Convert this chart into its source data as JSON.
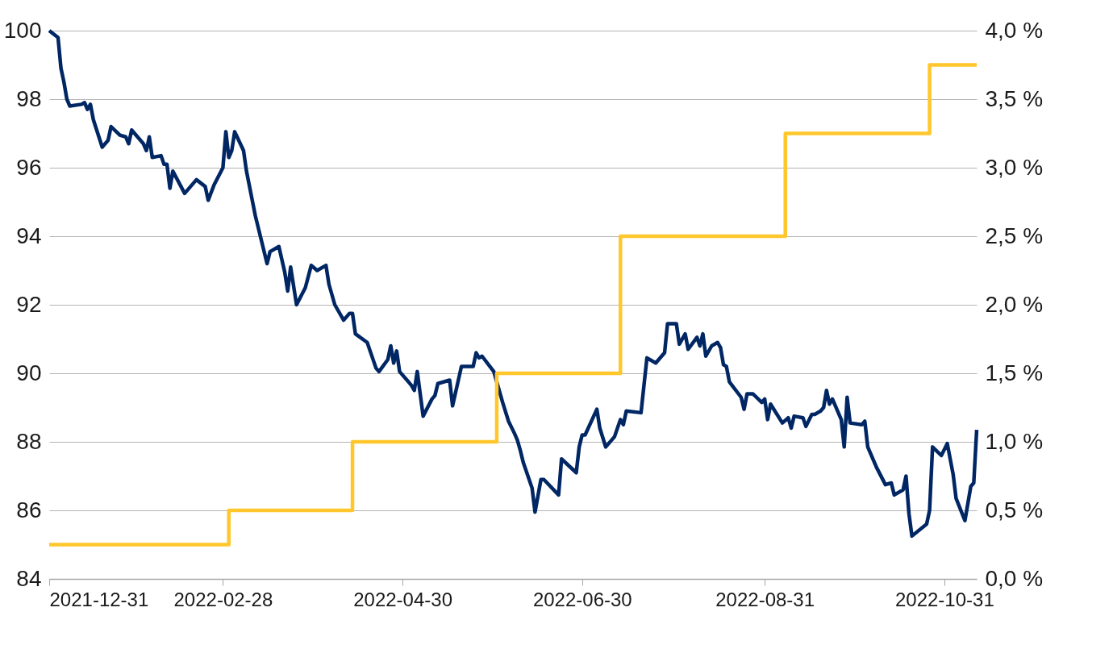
{
  "chart_data": {
    "type": "line",
    "xlim": [
      "2021-12-31",
      "2022-11-11"
    ],
    "xticks": [
      "2021-12-31",
      "2022-02-28",
      "2022-04-30",
      "2022-06-30",
      "2022-08-31",
      "2022-10-31"
    ],
    "ylim": [
      84,
      100
    ],
    "yticks": [
      84,
      86,
      88,
      90,
      92,
      94,
      96,
      98,
      100
    ],
    "y2lim": [
      0,
      4
    ],
    "y2ticks": [
      {
        "value": 0,
        "label": "0,0 %"
      },
      {
        "value": 0.5,
        "label": "0,5 %"
      },
      {
        "value": 1,
        "label": "1,0 %"
      },
      {
        "value": 1.5,
        "label": "1,5 %"
      },
      {
        "value": 2,
        "label": "2,0 %"
      },
      {
        "value": 2.5,
        "label": "2,5 %"
      },
      {
        "value": 3,
        "label": "3,0 %"
      },
      {
        "value": 3.5,
        "label": "3,5 %"
      },
      {
        "value": 4,
        "label": "4,0 %"
      }
    ],
    "grid": "y",
    "series": [
      {
        "color": "#002664",
        "x": [
          "2021-12-31",
          "2022-01-03",
          "2022-01-04",
          "2022-01-05",
          "2022-01-06",
          "2022-01-07",
          "2022-01-11",
          "2022-01-12",
          "2022-01-13",
          "2022-01-14",
          "2022-01-15",
          "2022-01-18",
          "2022-01-20",
          "2022-01-21",
          "2022-01-24",
          "2022-01-26",
          "2022-01-27",
          "2022-01-28",
          "2022-02-01",
          "2022-02-02",
          "2022-02-03",
          "2022-02-04",
          "2022-02-07",
          "2022-02-08",
          "2022-02-09",
          "2022-02-10",
          "2022-02-11",
          "2022-02-15",
          "2022-02-19",
          "2022-02-22",
          "2022-02-23",
          "2022-02-25",
          "2022-02-28",
          "2022-03-01",
          "2022-03-02",
          "2022-03-03",
          "2022-03-04",
          "2022-03-07",
          "2022-03-08",
          "2022-03-11",
          "2022-03-15",
          "2022-03-16",
          "2022-03-19",
          "2022-03-21",
          "2022-03-22",
          "2022-03-23",
          "2022-03-25",
          "2022-03-28",
          "2022-03-30",
          "2022-04-01",
          "2022-04-04",
          "2022-04-05",
          "2022-04-07",
          "2022-04-10",
          "2022-04-12",
          "2022-04-13",
          "2022-04-14",
          "2022-04-18",
          "2022-04-19",
          "2022-04-21",
          "2022-04-22",
          "2022-04-25",
          "2022-04-26",
          "2022-04-27",
          "2022-04-28",
          "2022-04-29",
          "2022-05-03",
          "2022-05-04",
          "2022-05-05",
          "2022-05-07",
          "2022-05-10",
          "2022-05-11",
          "2022-05-12",
          "2022-05-16",
          "2022-05-17",
          "2022-05-20",
          "2022-05-24",
          "2022-05-25",
          "2022-05-26",
          "2022-05-27",
          "2022-05-31",
          "2022-06-03",
          "2022-06-05",
          "2022-06-07",
          "2022-06-08",
          "2022-06-09",
          "2022-06-10",
          "2022-06-13",
          "2022-06-14",
          "2022-06-16",
          "2022-06-17",
          "2022-06-22",
          "2022-06-23",
          "2022-06-28",
          "2022-06-29",
          "2022-06-30",
          "2022-07-01",
          "2022-07-05",
          "2022-07-06",
          "2022-07-08",
          "2022-07-11",
          "2022-07-13",
          "2022-07-14",
          "2022-07-15",
          "2022-07-20",
          "2022-07-22",
          "2022-07-25",
          "2022-07-28",
          "2022-07-29",
          "2022-08-01",
          "2022-08-02",
          "2022-08-04",
          "2022-08-05",
          "2022-08-08",
          "2022-08-09",
          "2022-08-10",
          "2022-08-11",
          "2022-08-13",
          "2022-08-15",
          "2022-08-16",
          "2022-08-17",
          "2022-08-18",
          "2022-08-19",
          "2022-08-23",
          "2022-08-24",
          "2022-08-25",
          "2022-08-27",
          "2022-08-30",
          "2022-08-31",
          "2022-09-01",
          "2022-09-02",
          "2022-09-06",
          "2022-09-08",
          "2022-09-09",
          "2022-09-10",
          "2022-09-13",
          "2022-09-14",
          "2022-09-16",
          "2022-09-17",
          "2022-09-19",
          "2022-09-20",
          "2022-09-21",
          "2022-09-22",
          "2022-09-23",
          "2022-09-26",
          "2022-09-27",
          "2022-09-28",
          "2022-09-29",
          "2022-10-03",
          "2022-10-04",
          "2022-10-05",
          "2022-10-08",
          "2022-10-11",
          "2022-10-13",
          "2022-10-14",
          "2022-10-17",
          "2022-10-18",
          "2022-10-19",
          "2022-10-20",
          "2022-10-25",
          "2022-10-26",
          "2022-10-27",
          "2022-10-30",
          "2022-11-01",
          "2022-11-03",
          "2022-11-04",
          "2022-11-07",
          "2022-11-09",
          "2022-11-10",
          "2022-11-11"
        ],
        "values": [
          100.0,
          99.8,
          98.9,
          98.5,
          98.0,
          97.8,
          97.85,
          97.9,
          97.7,
          97.85,
          97.4,
          96.6,
          96.8,
          97.2,
          96.95,
          96.9,
          96.7,
          97.1,
          96.7,
          96.5,
          96.9,
          96.3,
          96.35,
          96.1,
          96.1,
          95.4,
          95.9,
          95.25,
          95.65,
          95.45,
          95.05,
          95.5,
          96.0,
          97.05,
          96.3,
          96.5,
          97.05,
          96.5,
          95.9,
          94.6,
          93.2,
          93.55,
          93.7,
          92.95,
          92.4,
          93.1,
          92.0,
          92.5,
          93.15,
          93.0,
          93.15,
          92.6,
          92.0,
          91.55,
          91.75,
          91.75,
          91.15,
          90.9,
          90.65,
          90.15,
          90.05,
          90.4,
          90.8,
          90.3,
          90.65,
          90.05,
          89.65,
          89.5,
          90.05,
          88.75,
          89.25,
          89.35,
          89.7,
          89.8,
          89.05,
          90.2,
          90.2,
          90.6,
          90.45,
          90.5,
          90.05,
          89.15,
          88.6,
          88.25,
          88.05,
          87.75,
          87.4,
          86.65,
          85.95,
          86.9,
          86.9,
          86.45,
          87.5,
          87.1,
          87.85,
          88.2,
          88.2,
          88.95,
          88.4,
          87.85,
          88.15,
          88.65,
          88.5,
          88.9,
          88.85,
          90.45,
          90.3,
          90.6,
          91.45,
          91.45,
          90.85,
          91.15,
          90.7,
          91.05,
          90.8,
          91.15,
          90.5,
          90.8,
          90.9,
          90.75,
          90.25,
          90.2,
          89.75,
          89.3,
          88.95,
          89.4,
          89.4,
          89.15,
          89.25,
          88.65,
          89.1,
          88.55,
          88.7,
          88.4,
          88.75,
          88.7,
          88.45,
          88.8,
          88.8,
          88.9,
          89.0,
          89.5,
          89.1,
          89.25,
          88.65,
          87.85,
          89.3,
          88.55,
          88.5,
          88.6,
          87.85,
          87.25,
          86.75,
          86.8,
          86.45,
          86.6,
          87.0,
          85.9,
          85.25,
          85.6,
          86.0,
          87.85,
          87.6,
          87.95,
          87.05,
          86.35,
          85.7,
          86.7,
          86.8,
          88.35
        ]
      },
      {
        "type": "step",
        "axis": "y2",
        "color": "#ffc72c",
        "x": [
          "2021-12-31",
          "2022-03-02",
          "2022-04-13",
          "2022-06-01",
          "2022-07-13",
          "2022-09-07",
          "2022-10-26",
          "2022-11-11"
        ],
        "values": [
          0.25,
          0.5,
          1.0,
          1.5,
          2.5,
          3.25,
          3.75,
          3.75
        ]
      }
    ]
  }
}
